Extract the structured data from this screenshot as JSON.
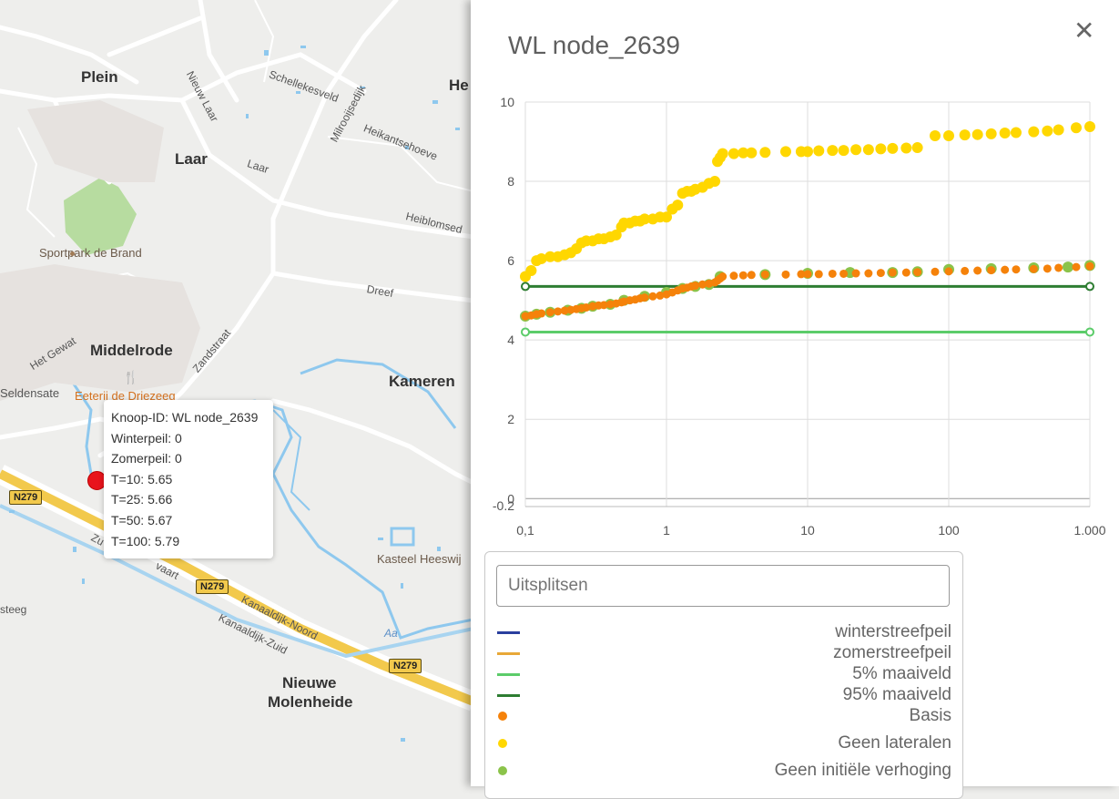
{
  "map": {
    "places": [
      "Plein",
      "Laar",
      "Middelrode",
      "Kameren",
      "Nieuwe",
      "Molenheide",
      "He"
    ],
    "streets": [
      "Nieuw Laar",
      "Schellekesveld",
      "Milrooijsedijk",
      "Heikantsehoeve",
      "Laar",
      "Heiblomsed",
      "Dreef",
      "Zandstraat",
      "Het Gewat",
      "Kanaaldijk-Noord",
      "Kanaaldijk-Zuid",
      "steeg",
      "Aa",
      "Zu",
      "vaart"
    ],
    "pois": [
      "Sportpark de Brand",
      "Eeterij de Driezeeg",
      "Seldensate",
      "Kasteel Heeswij"
    ],
    "road_shield": "N279",
    "popup": {
      "id_line": "Knoop-ID: WL node_2639",
      "winter": "Winterpeil: 0",
      "zomer": "Zomerpeil: 0",
      "t10": "T=10: 5.65",
      "t25": "T=25: 5.66",
      "t50": "T=50: 5.67",
      "t100": "T=100: 5.79"
    }
  },
  "panel": {
    "title": "WL node_2639",
    "close_glyph": "✕",
    "search_placeholder": "Uitsplitsen",
    "legend": [
      {
        "label": "winterstreefpeil",
        "kind": "line",
        "color": "#2a3f9e"
      },
      {
        "label": "zomerstreefpeil",
        "kind": "line",
        "color": "#e8a838"
      },
      {
        "label": "5% maaiveld",
        "kind": "line",
        "color": "#5ccc6a"
      },
      {
        "label": "95% maaiveld",
        "kind": "line",
        "color": "#2e7d32"
      },
      {
        "label": "Basis",
        "kind": "dot",
        "color": "#f5820a"
      },
      {
        "label": "Geen lateralen",
        "kind": "dot",
        "color": "#ffd700"
      },
      {
        "label": "Geen initiële verhoging",
        "kind": "dot",
        "color": "#8bc34a"
      }
    ]
  },
  "chart_data": {
    "type": "scatter",
    "x_scale": "log",
    "xlim": [
      0.1,
      1000
    ],
    "ylim": [
      -0.2,
      10
    ],
    "x_ticks": [
      "0,1",
      "1",
      "10",
      "100",
      "1.000"
    ],
    "y_ticks": [
      "-0.2",
      "0",
      "2",
      "4",
      "6",
      "8",
      "10"
    ],
    "grid": true,
    "series": [
      {
        "name": "5% maaiveld",
        "kind": "line",
        "color": "#5ccc6a",
        "x": [
          0.1,
          1000
        ],
        "y": [
          4.2,
          4.2
        ]
      },
      {
        "name": "95% maaiveld",
        "kind": "line",
        "color": "#2e7d32",
        "x": [
          0.1,
          1000
        ],
        "y": [
          5.35,
          5.35
        ]
      },
      {
        "name": "Geen lateralen",
        "kind": "dot",
        "color": "#ffd700",
        "x": [
          0.1,
          0.11,
          0.12,
          0.13,
          0.15,
          0.17,
          0.19,
          0.21,
          0.23,
          0.25,
          0.27,
          0.3,
          0.33,
          0.36,
          0.4,
          0.44,
          0.48,
          0.5,
          0.55,
          0.6,
          0.65,
          0.7,
          0.8,
          0.9,
          1.0,
          1.1,
          1.2,
          1.3,
          1.4,
          1.5,
          1.6,
          1.8,
          2.0,
          2.2,
          2.3,
          2.4,
          2.5,
          3,
          3.5,
          4,
          5,
          7,
          9,
          10,
          12,
          15,
          18,
          22,
          27,
          33,
          40,
          50,
          60,
          80,
          100,
          130,
          160,
          200,
          250,
          300,
          400,
          500,
          600,
          800,
          1000
        ],
        "y": [
          5.6,
          5.75,
          6.0,
          6.05,
          6.1,
          6.1,
          6.15,
          6.2,
          6.3,
          6.45,
          6.5,
          6.5,
          6.55,
          6.55,
          6.6,
          6.65,
          6.85,
          6.95,
          6.95,
          7.0,
          7.0,
          7.05,
          7.05,
          7.1,
          7.1,
          7.3,
          7.4,
          7.7,
          7.75,
          7.75,
          7.8,
          7.85,
          7.95,
          8.0,
          8.5,
          8.6,
          8.7,
          8.7,
          8.72,
          8.72,
          8.73,
          8.75,
          8.75,
          8.75,
          8.77,
          8.78,
          8.78,
          8.8,
          8.8,
          8.82,
          8.83,
          8.84,
          8.85,
          9.15,
          9.15,
          9.17,
          9.18,
          9.2,
          9.22,
          9.23,
          9.25,
          9.27,
          9.3,
          9.35,
          9.38
        ]
      },
      {
        "name": "Geen initiële verhoging",
        "kind": "dot",
        "color": "#8bc34a",
        "x": [
          0.1,
          0.12,
          0.15,
          0.2,
          0.25,
          0.3,
          0.4,
          0.5,
          0.7,
          1.0,
          1.3,
          1.6,
          2.0,
          2.4,
          5,
          10,
          20,
          40,
          60,
          100,
          200,
          400,
          700,
          1000
        ],
        "y": [
          4.6,
          4.65,
          4.7,
          4.75,
          4.8,
          4.85,
          4.9,
          5.0,
          5.1,
          5.2,
          5.3,
          5.35,
          5.4,
          5.6,
          5.65,
          5.68,
          5.7,
          5.7,
          5.72,
          5.78,
          5.8,
          5.82,
          5.84,
          5.88
        ]
      },
      {
        "name": "Basis",
        "kind": "dot",
        "color": "#f5820a",
        "x": [
          0.1,
          0.11,
          0.12,
          0.13,
          0.15,
          0.17,
          0.19,
          0.21,
          0.23,
          0.25,
          0.27,
          0.3,
          0.33,
          0.36,
          0.4,
          0.44,
          0.48,
          0.5,
          0.55,
          0.6,
          0.65,
          0.7,
          0.8,
          0.9,
          1.0,
          1.1,
          1.2,
          1.3,
          1.4,
          1.5,
          1.6,
          1.8,
          2.0,
          2.2,
          2.3,
          2.4,
          2.5,
          3,
          3.5,
          4,
          5,
          7,
          9,
          10,
          12,
          15,
          18,
          22,
          27,
          33,
          40,
          50,
          60,
          80,
          100,
          130,
          160,
          200,
          250,
          300,
          400,
          500,
          600,
          800,
          1000
        ],
        "y": [
          4.6,
          4.62,
          4.65,
          4.67,
          4.7,
          4.72,
          4.74,
          4.76,
          4.78,
          4.8,
          4.82,
          4.85,
          4.87,
          4.88,
          4.9,
          4.92,
          4.95,
          4.97,
          5.0,
          5.02,
          5.05,
          5.07,
          5.1,
          5.12,
          5.15,
          5.2,
          5.25,
          5.3,
          5.32,
          5.35,
          5.37,
          5.4,
          5.42,
          5.45,
          5.5,
          5.55,
          5.6,
          5.62,
          5.63,
          5.64,
          5.65,
          5.65,
          5.66,
          5.66,
          5.66,
          5.67,
          5.67,
          5.68,
          5.68,
          5.69,
          5.7,
          5.7,
          5.71,
          5.72,
          5.73,
          5.74,
          5.75,
          5.76,
          5.77,
          5.78,
          5.79,
          5.8,
          5.82,
          5.84,
          5.86
        ]
      }
    ]
  }
}
